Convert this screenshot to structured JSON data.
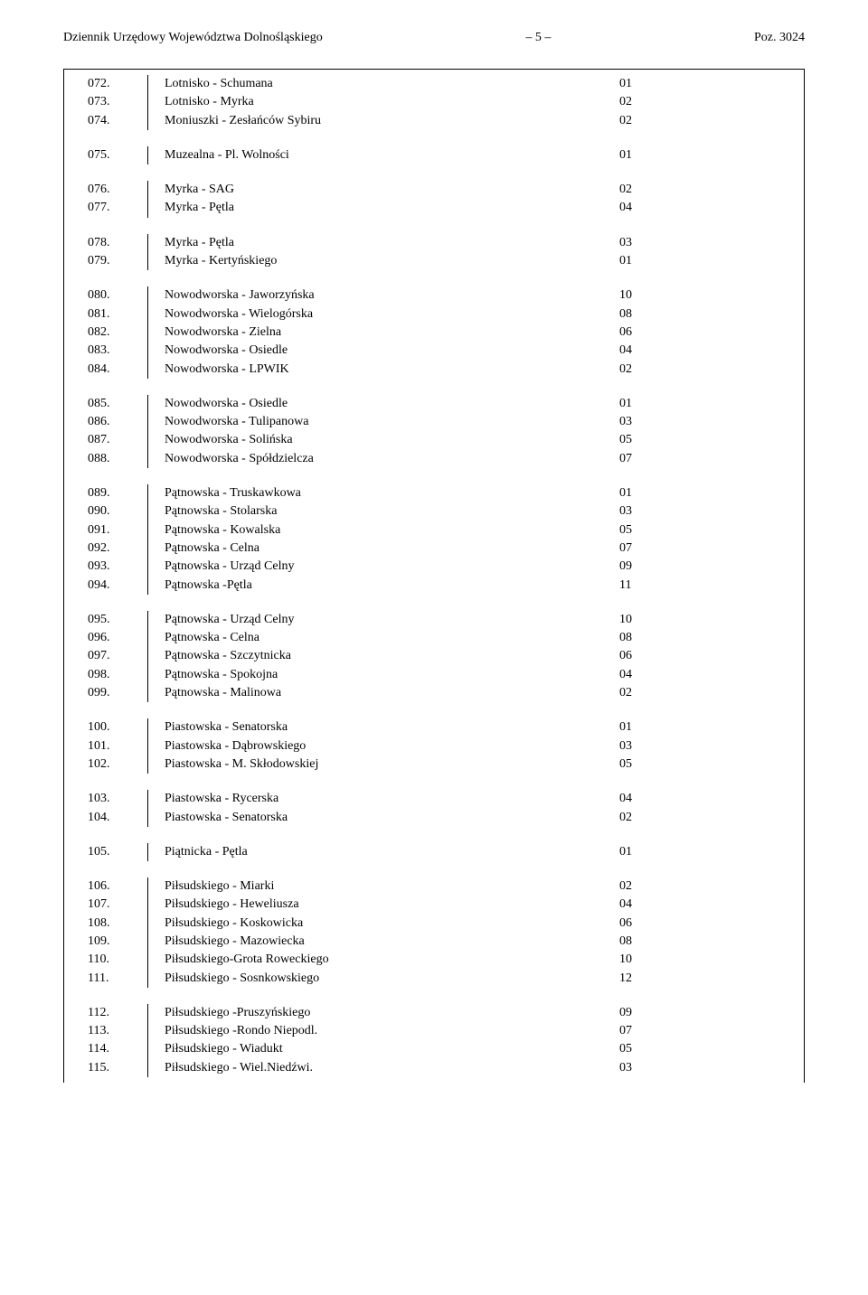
{
  "header": {
    "left": "Dziennik Urzędowy Województwa Dolnośląskiego",
    "center": "– 5 –",
    "right": "Poz. 3024"
  },
  "groups": [
    [
      {
        "n": "072.",
        "t": "Lotnisko - Schumana",
        "v": "01"
      },
      {
        "n": "073.",
        "t": "Lotnisko - Myrka",
        "v": "02"
      },
      {
        "n": "074.",
        "t": "Moniuszki - Zesłańców Sybiru",
        "v": "02"
      }
    ],
    [
      {
        "n": "075.",
        "t": "Muzealna - Pl. Wolności",
        "v": "01"
      }
    ],
    [
      {
        "n": "076.",
        "t": "Myrka - SAG",
        "v": "02"
      },
      {
        "n": "077.",
        "t": "Myrka - Pętla",
        "v": "04"
      }
    ],
    [
      {
        "n": "078.",
        "t": "Myrka - Pętla",
        "v": "03"
      },
      {
        "n": "079.",
        "t": "Myrka -  Kertyńskiego",
        "v": "01"
      }
    ],
    [
      {
        "n": "080.",
        "t": "Nowodworska - Jaworzyńska",
        "v": "10"
      },
      {
        "n": "081.",
        "t": "Nowodworska - Wielogórska",
        "v": "08"
      },
      {
        "n": "082.",
        "t": "Nowodworska - Zielna",
        "v": "06"
      },
      {
        "n": "083.",
        "t": "Nowodworska - Osiedle",
        "v": "04"
      },
      {
        "n": "084.",
        "t": "Nowodworska - LPWIK",
        "v": "02"
      }
    ],
    [
      {
        "n": "085.",
        "t": "Nowodworska - Osiedle",
        "v": "01"
      },
      {
        "n": "086.",
        "t": "Nowodworska - Tulipanowa",
        "v": "03"
      },
      {
        "n": "087.",
        "t": "Nowodworska - Solińska",
        "v": "05"
      },
      {
        "n": "088.",
        "t": "Nowodworska - Spółdzielcza",
        "v": "07"
      }
    ],
    [
      {
        "n": "089.",
        "t": "Pątnowska - Truskawkowa",
        "v": "01"
      },
      {
        "n": "090.",
        "t": "Pątnowska - Stolarska",
        "v": "03"
      },
      {
        "n": "091.",
        "t": "Pątnowska - Kowalska",
        "v": "05"
      },
      {
        "n": "092.",
        "t": "Pątnowska - Celna",
        "v": "07"
      },
      {
        "n": "093.",
        "t": "Pątnowska - Urząd Celny",
        "v": "09"
      },
      {
        "n": "094.",
        "t": "Pątnowska -Pętla",
        "v": "11"
      }
    ],
    [
      {
        "n": "095.",
        "t": "Pątnowska -  Urząd Celny",
        "v": "10"
      },
      {
        "n": "096.",
        "t": "Pątnowska - Celna",
        "v": "08"
      },
      {
        "n": "097.",
        "t": "Pątnowska - Szczytnicka",
        "v": "06"
      },
      {
        "n": "098.",
        "t": "Pątnowska - Spokojna",
        "v": "04"
      },
      {
        "n": "099.",
        "t": "Pątnowska - Malinowa",
        "v": "02"
      }
    ],
    [
      {
        "n": "100.",
        "t": "Piastowska - Senatorska",
        "v": "01"
      },
      {
        "n": "101.",
        "t": "Piastowska - Dąbrowskiego",
        "v": "03"
      },
      {
        "n": "102.",
        "t": "Piastowska - M. Skłodowskiej",
        "v": "05"
      }
    ],
    [
      {
        "n": "103.",
        "t": "Piastowska - Rycerska",
        "v": "04"
      },
      {
        "n": "104.",
        "t": "Piastowska - Senatorska",
        "v": "02"
      }
    ],
    [
      {
        "n": "105.",
        "t": "Piątnicka - Pętla",
        "v": "01"
      }
    ],
    [
      {
        "n": "106.",
        "t": "Piłsudskiego - Miarki",
        "v": "02"
      },
      {
        "n": "107.",
        "t": "Piłsudskiego - Heweliusza",
        "v": "04"
      },
      {
        "n": "108.",
        "t": "Piłsudskiego - Koskowicka",
        "v": "06"
      },
      {
        "n": "109.",
        "t": "Piłsudskiego - Mazowiecka",
        "v": "08"
      },
      {
        "n": "110.",
        "t": "Piłsudskiego-Grota Roweckiego",
        "v": "10"
      },
      {
        "n": "111.",
        "t": "Piłsudskiego - Sosnkowskiego",
        "v": "12"
      }
    ],
    [
      {
        "n": "112.",
        "t": "Piłsudskiego -Pruszyńskiego",
        "v": "09"
      },
      {
        "n": "113.",
        "t": "Piłsudskiego -Rondo Niepodl.",
        "v": "07"
      },
      {
        "n": "114.",
        "t": "Piłsudskiego -  Wiadukt",
        "v": "05"
      },
      {
        "n": "115.",
        "t": "Piłsudskiego - Wiel.Niedźwi.",
        "v": "03"
      }
    ]
  ]
}
